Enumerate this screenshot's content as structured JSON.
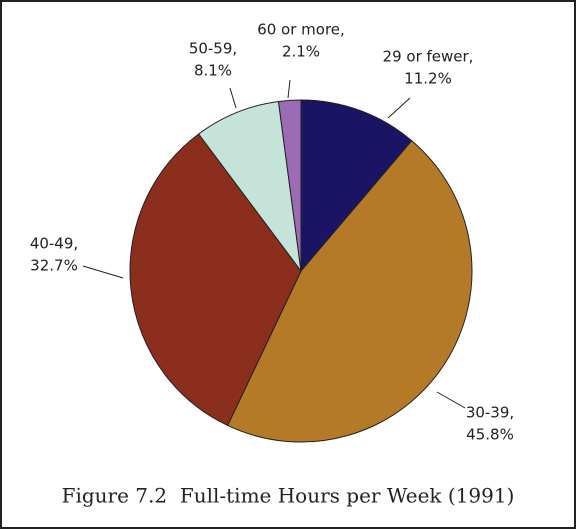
{
  "chart_data": {
    "type": "pie",
    "title": "Figure 7.2  Full-time Hours per Week (1991)",
    "categories": [
      "29 or fewer,",
      "30-39,",
      "40-49,",
      "50-59,",
      "60 or more,"
    ],
    "values": [
      11.2,
      45.8,
      32.7,
      8.1,
      2.1
    ],
    "value_labels": [
      "11.2%",
      "45.8%",
      "32.7%",
      "8.1%",
      "2.1%"
    ],
    "colors": [
      "#1b1464",
      "#b57a27",
      "#8b2e1e",
      "#c5e3d8",
      "#9b6bb5"
    ]
  }
}
